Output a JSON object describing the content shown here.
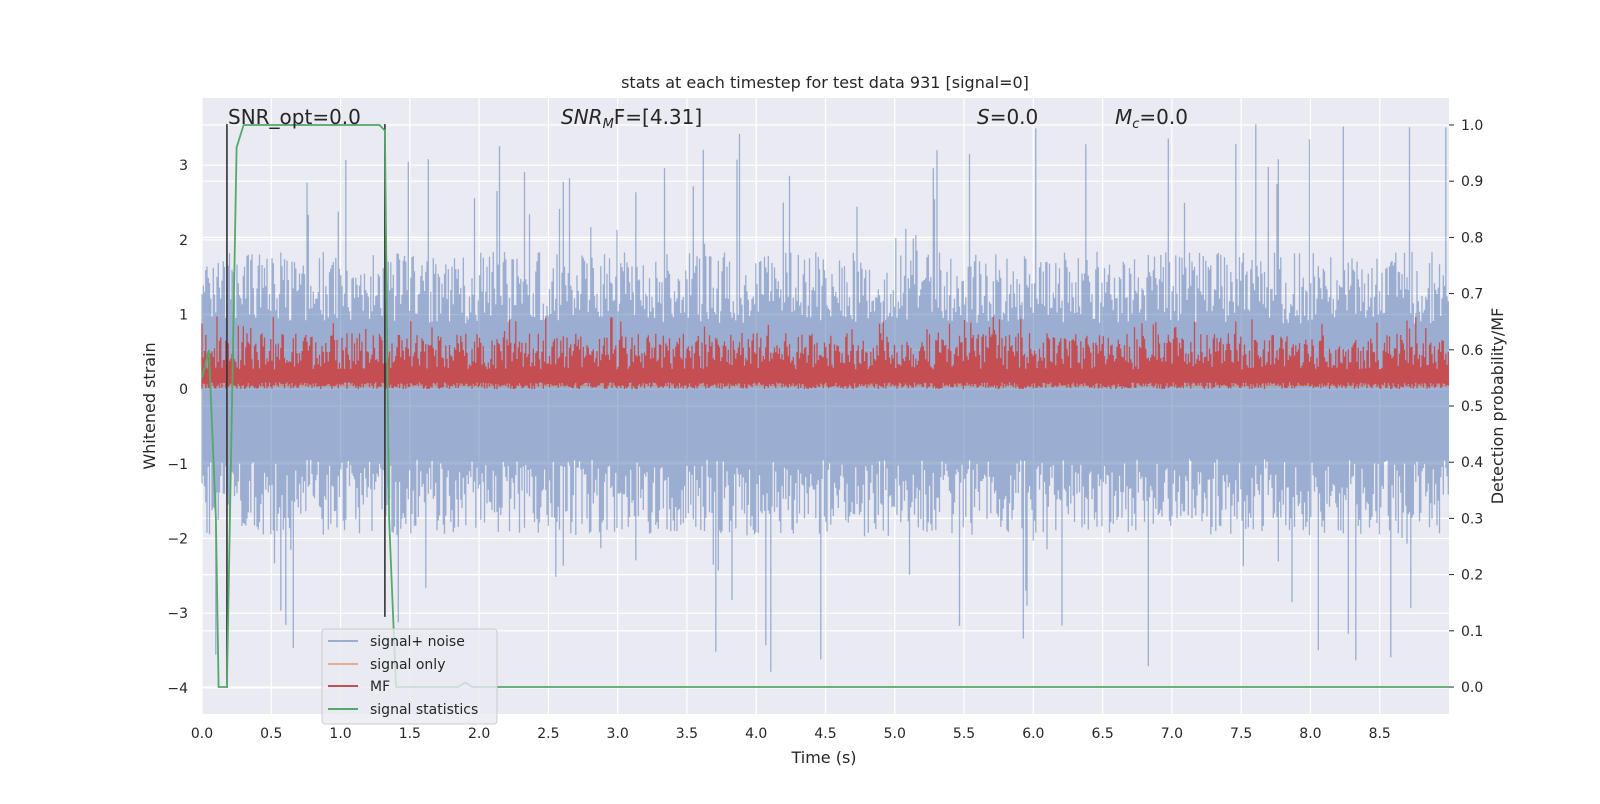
{
  "chart_data": {
    "type": "line",
    "title": "stats at each timestep for test data 931 [signal=0]",
    "xlabel": "Time (s)",
    "ylabel": "Whitened strain",
    "y2label": "Detection probability/MF",
    "xlim": [
      0.0,
      9.0
    ],
    "ylim": [
      -4.35,
      3.9
    ],
    "y2lim": [
      -0.048,
      1.048
    ],
    "xticks": [
      0.0,
      0.5,
      1.0,
      1.5,
      2.0,
      2.5,
      3.0,
      3.5,
      4.0,
      4.5,
      5.0,
      5.5,
      6.0,
      6.5,
      7.0,
      7.5,
      8.0,
      8.5
    ],
    "xtick_labels": [
      "0.0",
      "0.5",
      "1.0",
      "1.5",
      "2.0",
      "2.5",
      "3.0",
      "3.5",
      "4.0",
      "4.5",
      "5.0",
      "5.5",
      "6.0",
      "6.5",
      "7.0",
      "7.5",
      "8.0",
      "8.5"
    ],
    "yticks": [
      -4,
      -3,
      -2,
      -1,
      0,
      1,
      2,
      3
    ],
    "ytick_labels": [
      "−4",
      "−3",
      "−2",
      "−1",
      "0",
      "1",
      "2",
      "3"
    ],
    "y2ticks": [
      0.0,
      0.1,
      0.2,
      0.3,
      0.4,
      0.5,
      0.6,
      0.7,
      0.8,
      0.9,
      1.0
    ],
    "y2tick_labels": [
      "0.0",
      "0.1",
      "0.2",
      "0.3",
      "0.4",
      "0.5",
      "0.6",
      "0.7",
      "0.8",
      "0.9",
      "1.0"
    ],
    "grid": true,
    "legend_position": "lower-left",
    "series": [
      {
        "name": "signal+ noise",
        "axis": "left",
        "color": "#4c72b0",
        "note_style": "dense noise trace",
        "envelope": {
          "upper_typical": 1.6,
          "lower_typical": -1.7,
          "upper_peak": 3.55,
          "lower_peak": -3.85
        }
      },
      {
        "name": "signal only",
        "axis": "left",
        "color": "#dd8452",
        "x": [
          0.0,
          9.0
        ],
        "y": [
          0.05,
          0.05
        ]
      },
      {
        "name": "MF",
        "axis": "right",
        "color": "#c44e52",
        "note_style": "dense noise trace",
        "envelope": {
          "lower": 0.53,
          "upper_typical": 0.63,
          "upper_peak": 0.66
        }
      },
      {
        "name": "signal statistics",
        "axis": "right",
        "color": "#55a868",
        "x": [
          0.0,
          0.05,
          0.1,
          0.12,
          0.18,
          0.25,
          0.3,
          0.6,
          1.0,
          1.28,
          1.32,
          1.35,
          1.4,
          1.85,
          1.9,
          1.95,
          2.0,
          9.0
        ],
        "y": [
          0.55,
          0.6,
          0.3,
          0.0,
          0.0,
          0.96,
          1.0,
          1.0,
          1.0,
          1.0,
          0.99,
          0.3,
          0.0,
          0.0,
          0.008,
          0.0,
          0.0,
          0.0
        ]
      }
    ],
    "vlines": [
      {
        "x": 0.18,
        "ymin": -4.0,
        "ymax": 3.55,
        "color": "#333333"
      },
      {
        "x": 1.32,
        "ymin": -3.05,
        "ymax": 3.55,
        "color": "#333333"
      }
    ],
    "annotations": [
      {
        "id": "snr-opt",
        "text": "SNR_opt=0.0"
      },
      {
        "id": "snr-mf",
        "prefix": "SNR",
        "sub": "M",
        "suffix": "F=[4.31]"
      },
      {
        "id": "s-val",
        "prefix": "S",
        "suffix": "=0.0"
      },
      {
        "id": "mc-val",
        "prefix": "M",
        "sub": "c",
        "suffix": "=0.0"
      }
    ],
    "colors": {
      "axes_bg": "#eaeaf2",
      "grid": "#ffffff"
    }
  }
}
